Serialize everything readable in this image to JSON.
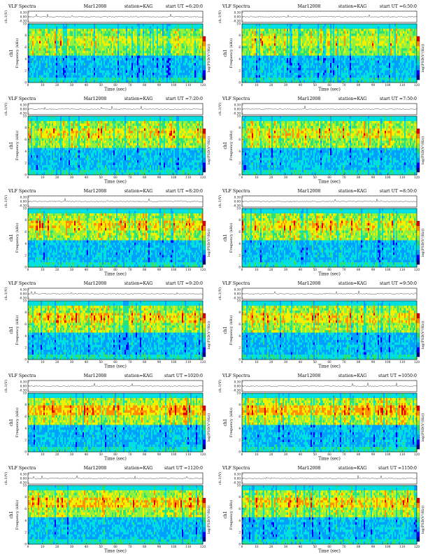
{
  "common": {
    "title": "VLF Spectra",
    "date": "Mar12008",
    "station": "station=KAG",
    "start_label": "start  UT =",
    "time_xlabel": "Time  (sec)",
    "freq_ylabel": "Frequency  (kHz)",
    "channel_label": "ch1",
    "wave_ylabel": "ch.1(V)",
    "colorbar_label": "log(PSD(V²/Hz))"
  },
  "chart_data": [
    {
      "type": "heatmap",
      "start_ut": "6:20:0",
      "xlim": [
        0,
        120
      ],
      "ylim": [
        0,
        10
      ],
      "x_ticks": [
        0,
        10,
        20,
        30,
        40,
        50,
        60,
        70,
        80,
        90,
        100,
        110,
        120
      ],
      "y_ticks": [
        0,
        2,
        4,
        6,
        8,
        10
      ],
      "wave_ticks": [
        "0.30",
        "0.00",
        "-0.30"
      ],
      "intensity": 0.35
    },
    {
      "type": "heatmap",
      "start_ut": "6:50:0",
      "xlim": [
        0,
        120
      ],
      "ylim": [
        0,
        10
      ],
      "x_ticks": [
        0,
        10,
        20,
        30,
        40,
        50,
        60,
        70,
        80,
        90,
        100,
        110,
        120
      ],
      "y_ticks": [
        0,
        2,
        4,
        6,
        8,
        10
      ],
      "wave_ticks": [
        "0.30",
        "0.00",
        "-0.30"
      ],
      "intensity": 0.35
    },
    {
      "type": "heatmap",
      "start_ut": "7:20:0",
      "xlim": [
        0,
        120
      ],
      "ylim": [
        0,
        10
      ],
      "x_ticks": [
        0,
        10,
        20,
        30,
        40,
        50,
        60,
        70,
        80,
        90,
        100,
        110,
        120
      ],
      "y_ticks": [
        0,
        2,
        4,
        6,
        8,
        10
      ],
      "wave_ticks": [
        "0.30",
        "0.00",
        "-0.30"
      ],
      "intensity": 0.45
    },
    {
      "type": "heatmap",
      "start_ut": "7:50:0",
      "xlim": [
        0,
        120
      ],
      "ylim": [
        0,
        10
      ],
      "x_ticks": [
        0,
        10,
        20,
        30,
        40,
        50,
        60,
        70,
        80,
        90,
        100,
        110,
        120
      ],
      "y_ticks": [
        0,
        2,
        4,
        6,
        8,
        10
      ],
      "wave_ticks": [
        "0.30",
        "0.00",
        "-0.30"
      ],
      "intensity": 0.45
    },
    {
      "type": "heatmap",
      "start_ut": "8:20:0",
      "xlim": [
        0,
        120
      ],
      "ylim": [
        0,
        10
      ],
      "x_ticks": [
        0,
        10,
        20,
        30,
        40,
        50,
        60,
        70,
        80,
        90,
        100,
        110,
        120
      ],
      "y_ticks": [
        0,
        2,
        4,
        6,
        8,
        10
      ],
      "wave_ticks": [
        "0.30",
        "0.00",
        "-0.30"
      ],
      "intensity": 0.5
    },
    {
      "type": "heatmap",
      "start_ut": "8:50:0",
      "xlim": [
        0,
        120
      ],
      "ylim": [
        0,
        10
      ],
      "x_ticks": [
        0,
        10,
        20,
        30,
        40,
        50,
        60,
        70,
        80,
        90,
        100,
        110,
        120
      ],
      "y_ticks": [
        0,
        2,
        4,
        6,
        8,
        10
      ],
      "wave_ticks": [
        "0.30",
        "0.00",
        "-0.30"
      ],
      "intensity": 0.5
    },
    {
      "type": "heatmap",
      "start_ut": "9:20:0",
      "xlim": [
        0,
        120
      ],
      "ylim": [
        0,
        10
      ],
      "x_ticks": [
        0,
        10,
        20,
        30,
        40,
        50,
        60,
        70,
        80,
        90,
        100,
        110,
        120
      ],
      "y_ticks": [
        0,
        2,
        4,
        6,
        8,
        10
      ],
      "wave_ticks": [
        "0.30",
        "0.00",
        "-0.30"
      ],
      "intensity": 0.55
    },
    {
      "type": "heatmap",
      "start_ut": "9:50:0",
      "xlim": [
        0,
        120
      ],
      "ylim": [
        0,
        10
      ],
      "x_ticks": [
        0,
        10,
        20,
        30,
        40,
        50,
        60,
        70,
        80,
        90,
        100,
        110,
        120
      ],
      "y_ticks": [
        0,
        2,
        4,
        6,
        8,
        10
      ],
      "wave_ticks": [
        "0.30",
        "0.00",
        "-0.30"
      ],
      "intensity": 0.55
    },
    {
      "type": "heatmap",
      "start_ut": "1020:0",
      "xlim": [
        0,
        120
      ],
      "ylim": [
        0,
        10
      ],
      "x_ticks": [
        0,
        10,
        20,
        30,
        40,
        50,
        60,
        70,
        80,
        90,
        100,
        110,
        120
      ],
      "y_ticks": [
        0,
        2,
        4,
        6,
        8,
        10
      ],
      "wave_ticks": [
        "0.30",
        "0.00",
        "-0.30"
      ],
      "intensity": 0.7
    },
    {
      "type": "heatmap",
      "start_ut": "1050:0",
      "xlim": [
        0,
        120
      ],
      "ylim": [
        0,
        10
      ],
      "x_ticks": [
        0,
        10,
        20,
        30,
        40,
        50,
        60,
        70,
        80,
        90,
        100,
        110,
        120
      ],
      "y_ticks": [
        0,
        2,
        4,
        6,
        8,
        10
      ],
      "wave_ticks": [
        "0.30",
        "0.00",
        "-0.30"
      ],
      "intensity": 0.7
    },
    {
      "type": "heatmap",
      "start_ut": "1120:0",
      "xlim": [
        0,
        120
      ],
      "ylim": [
        0,
        10
      ],
      "x_ticks": [
        0,
        10,
        20,
        30,
        40,
        50,
        60,
        70,
        80,
        90,
        100,
        110,
        120
      ],
      "y_ticks": [
        0,
        2,
        4,
        6,
        8,
        10
      ],
      "wave_ticks": [
        "0.30",
        "0.00",
        "-0.30"
      ],
      "intensity": 0.6
    },
    {
      "type": "heatmap",
      "start_ut": "1150:0",
      "xlim": [
        0,
        120
      ],
      "ylim": [
        0,
        10
      ],
      "x_ticks": [
        0,
        10,
        20,
        30,
        40,
        50,
        60,
        70,
        80,
        90,
        100,
        110,
        120
      ],
      "y_ticks": [
        0,
        2,
        4,
        6,
        8,
        10
      ],
      "wave_ticks": [
        "0.30",
        "0.00",
        "-0.30"
      ],
      "intensity": 0.6
    }
  ],
  "colors": {
    "scale": [
      "#00008b",
      "#0000ff",
      "#00a0ff",
      "#00e0e0",
      "#30e070",
      "#90f040",
      "#f0f000",
      "#ff9000",
      "#e00000"
    ]
  }
}
